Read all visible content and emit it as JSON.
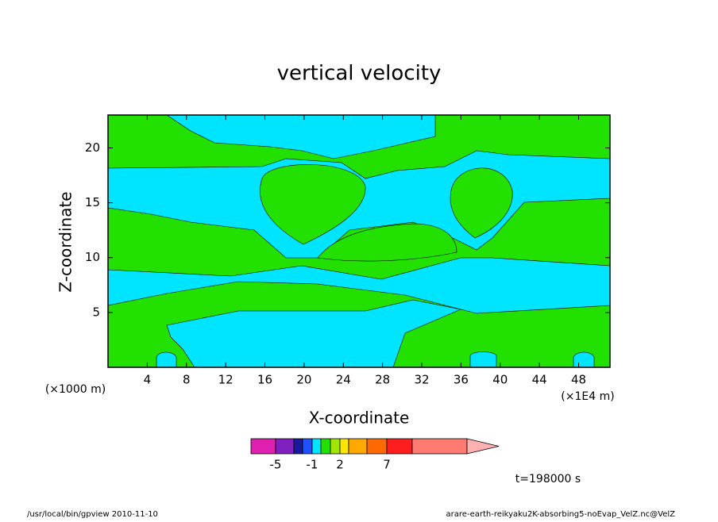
{
  "chart_data": {
    "type": "contour",
    "title": "vertical velocity",
    "x_label": "X-coordinate",
    "y_label": "Z-coordinate",
    "y_unit": "(×1000 m)",
    "x_unit": "(×1E4 m)",
    "xlim": [
      0,
      51.2
    ],
    "ylim": [
      0,
      23
    ],
    "xticks": [
      4,
      8,
      12,
      16,
      20,
      24,
      28,
      32,
      36,
      40,
      44,
      48
    ],
    "yticks": [
      5,
      10,
      15,
      20
    ],
    "colorbar": {
      "colors": [
        "#e020b0",
        "#8020c0",
        "#1a1aa0",
        "#2050ff",
        "#00e5ff",
        "#22e000",
        "#a0e600",
        "#ffe600",
        "#ffa800",
        "#ff6a00",
        "#ff1e1e",
        "#ff7a70",
        "#ffb0b0"
      ],
      "ticks": [
        -5,
        -1,
        2,
        7
      ]
    },
    "time_label": "t=198000 s",
    "footer_left": "/usr/local/bin/gpview  2010-11-10",
    "footer_right": "arare-earth-reikyaku2K-absorbing5-noEvap_VelZ.nc@VelZ"
  }
}
